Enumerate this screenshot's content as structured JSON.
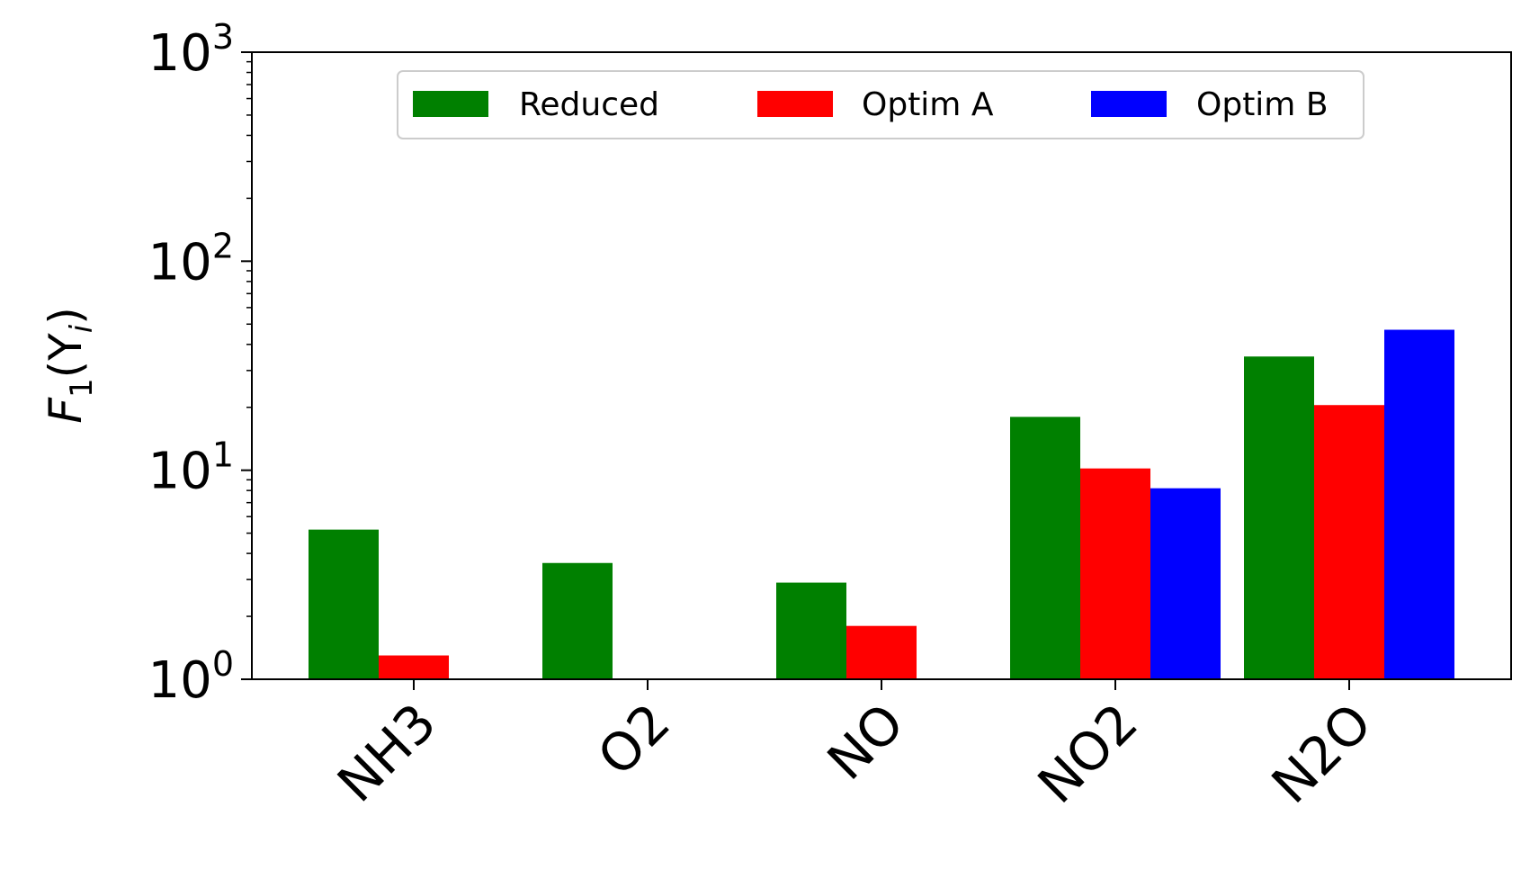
{
  "chart_data": {
    "type": "bar",
    "title": "",
    "xlabel": "",
    "ylabel": "F1(Yi)",
    "ylabel_parts": {
      "main": "F",
      "sub1": "1",
      "open": "(Y",
      "sub2": "i",
      "close": ")"
    },
    "yscale": "log",
    "ylim": [
      1,
      1000
    ],
    "y_ticks": [
      {
        "value": 1,
        "base": "10",
        "exp": "0"
      },
      {
        "value": 10,
        "base": "10",
        "exp": "1"
      },
      {
        "value": 100,
        "base": "10",
        "exp": "2"
      },
      {
        "value": 1000,
        "base": "10",
        "exp": "3"
      }
    ],
    "categories": [
      "NH3",
      "O2",
      "NO",
      "NO2",
      "N2O"
    ],
    "series": [
      {
        "name": "Reduced",
        "color": "#008000",
        "values": [
          5.2,
          3.6,
          2.9,
          18,
          35
        ]
      },
      {
        "name": "Optim A",
        "color": "#ff0000",
        "values": [
          1.3,
          1.0,
          1.8,
          10.2,
          20.5
        ]
      },
      {
        "name": "Optim B",
        "color": "#0000ff",
        "values": [
          1.0,
          1.0,
          1.0,
          8.2,
          47
        ]
      }
    ],
    "legend_position": "upper-center",
    "grid": false
  }
}
